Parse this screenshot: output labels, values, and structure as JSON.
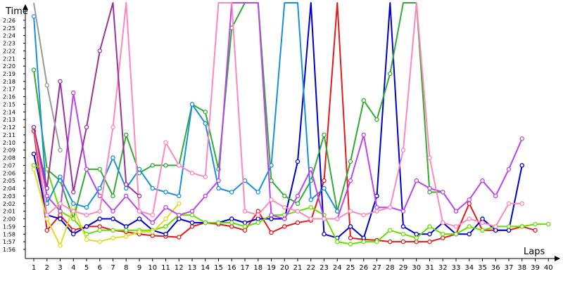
{
  "chart_data": {
    "type": "line",
    "ylabel": "Time",
    "xlabel": "Laps",
    "x": [
      1,
      2,
      3,
      4,
      5,
      6,
      7,
      8,
      9,
      10,
      11,
      12,
      13,
      14,
      15,
      16,
      17,
      18,
      19,
      20,
      21,
      22,
      23,
      24,
      25,
      26,
      27,
      28,
      29,
      30,
      31,
      32,
      33,
      34,
      35,
      36,
      37,
      38,
      39,
      40
    ],
    "xlim": [
      1,
      40
    ],
    "ylim": [
      "1:55",
      "2:28"
    ],
    "yticks": [
      "1:56",
      "1:57",
      "1:58",
      "1:59",
      "2:00",
      "2:01",
      "2:02",
      "2:03",
      "2:04",
      "2:05",
      "2:06",
      "2:07",
      "2:08",
      "2:09",
      "2:10",
      "2:11",
      "2:12",
      "2:13",
      "2:14",
      "2:15",
      "2:16",
      "2:17",
      "2:18",
      "2:19",
      "2:20",
      "2:21",
      "2:22",
      "2:23",
      "2:24",
      "2:25",
      "2:26"
    ],
    "grid": false,
    "legend": "none",
    "series": [
      {
        "color": "#e41a1c",
        "values": [
          "2:11.5",
          "1:58.5",
          "2:00.5",
          "1:58.5",
          "1:59.0",
          "1:59.0",
          "1:58.5",
          "1:58.3",
          "1:58.0",
          "1:57.8",
          "1:57.7",
          "1:57.6",
          "1:59.0",
          "1:59.5",
          "1:59.3",
          "1:59.0",
          "1:58.5",
          "2:01.0",
          "1:58.2",
          "1:59.0",
          "1:59.5",
          "1:59.8",
          "2:05.0",
          "2:30.0",
          "1:57.5",
          "1:57.3",
          "1:57.2",
          "1:57.0",
          "1:57.0",
          "1:57.0",
          "1:57.0",
          "1:57.5",
          "1:58.0",
          "2:02.0",
          "1:58.5",
          "1:58.5",
          "1:58.5",
          "1:59.0",
          "1:58.5",
          null
        ]
      },
      {
        "color": "#0000cc",
        "values": [
          "2:08.5",
          "2:00.5",
          "2:00.0",
          "1:58.0",
          "1:59.0",
          "2:00.0",
          "2:00.0",
          "1:59.0",
          "2:00.0",
          "1:58.5",
          "1:58.0",
          "2:00.0",
          "1:59.5",
          "1:59.5",
          "1:59.5",
          "2:00.0",
          "1:59.5",
          "2:00.0",
          "2:00.0",
          "2:00.0",
          "2:07.5",
          "2:30.0",
          "1:58.0",
          "1:57.5",
          "1:59.0",
          "1:57.5",
          "2:03.0",
          "2:30.0",
          "1:59.0",
          "1:58.0",
          "1:58.0",
          "1:59.5",
          "1:58.0",
          "1:58.0",
          "2:00.0",
          "1:58.5",
          "1:58.5",
          "2:07.0",
          null,
          null
        ]
      },
      {
        "color": "#33aa33",
        "values": [
          "2:19.5",
          "2:06.5",
          "2:05.0",
          "2:00.0",
          "2:06.5",
          "2:06.5",
          "2:03.0",
          "2:11.0",
          "2:06.0",
          "2:07.0",
          "2:07.0",
          "2:07.0",
          "2:15.0",
          "2:14.0",
          "2:06.5",
          "2:25.0",
          "2:30.0",
          "2:30.0",
          "2:05.0",
          "2:03.0",
          "2:02.0",
          "2:05.0",
          "2:11.0",
          "2:01.0",
          "2:07.5",
          "2:15.5",
          "2:13.0",
          "2:19.0",
          "2:30.0",
          "2:30.0",
          "2:03.5",
          "2:03.5",
          null,
          null,
          null,
          null,
          null,
          null,
          null,
          null
        ]
      },
      {
        "color": "#66dd00",
        "values": [
          "2:07.0",
          "2:06.5",
          "2:01.0",
          "2:00.0",
          "1:58.0",
          "1:58.5",
          "1:58.5",
          "1:58.5",
          "1:58.5",
          "1:58.5",
          "1:59.0",
          "2:00.5",
          "2:00.5",
          "1:59.5",
          "1:59.5",
          "1:59.5",
          "1:59.0",
          "1:59.5",
          "2:00.5",
          "2:00.5",
          "2:01.0",
          "2:01.5",
          "2:00.5",
          "1:57.0",
          "1:56.7",
          "1:57.0",
          "1:57.0",
          "1:58.5",
          "1:58.0",
          "1:57.5",
          "1:59.0",
          "1:58.0",
          "1:58.0",
          "1:59.0",
          "1:58.5",
          "1:59.0",
          "1:59.0",
          "1:59.0",
          "1:59.3",
          "1:59.3"
        ]
      },
      {
        "color": "#dddd22",
        "values": [
          "2:06.5",
          "2:00.0",
          "1:56.5",
          "2:01.5",
          "1:57.3",
          "1:57.0",
          "1:57.5",
          "1:57.7",
          "1:58.3",
          "1:58.3",
          "2:00.0",
          "2:02.0",
          null,
          null,
          null,
          null,
          null,
          null,
          null,
          null,
          null,
          null,
          null,
          null,
          null,
          null,
          null,
          null,
          null,
          null,
          null,
          null,
          null,
          null,
          null,
          null,
          null,
          null,
          null,
          null
        ]
      },
      {
        "color": "#1a8fe0",
        "values": [
          "2:26.5",
          "2:02.0",
          "2:05.5",
          "2:02.0",
          "2:01.5",
          "2:04.0",
          "2:08.0",
          "2:04.0",
          "2:06.5",
          "2:04.0",
          "2:03.5",
          "2:03.0",
          "2:15.0",
          "2:12.5",
          "2:04.0",
          "2:03.5",
          "2:05.0",
          "2:03.5",
          "2:07.0",
          "2:30.0",
          "2:30.0",
          "2:02.5",
          "2:04.0",
          "2:01.0",
          null,
          null,
          null,
          null,
          null,
          null,
          null,
          null,
          null,
          null,
          null,
          null,
          null,
          null,
          null,
          null
        ]
      },
      {
        "color": "#bb44ee",
        "values": [
          "2:12.0",
          "2:03.0",
          "2:01.0",
          "2:16.5",
          "2:06.5",
          "2:03.0",
          "2:01.0",
          "2:03.0",
          "2:01.0",
          "1:59.5",
          "2:01.5",
          "2:00.5",
          "2:01.0",
          "2:03.0",
          "2:05.0",
          "2:30.0",
          "2:30.0",
          "2:30.0",
          "2:00.5",
          "2:00.0",
          "2:03.0",
          "2:06.5",
          "2:00.0",
          "2:00.0",
          "2:05.0",
          "2:11.0",
          "2:01.5",
          "2:01.5",
          "2:01.0",
          "2:05.0",
          "2:04.0",
          "2:03.5",
          "2:01.0",
          "2:02.5",
          "2:05.0",
          "2:03.0",
          "2:06.5",
          "2:10.5",
          null,
          null
        ]
      },
      {
        "color": "#ff88bb",
        "values": [
          "2:12.0",
          "2:00.5",
          "2:02.0",
          "2:01.0",
          "2:00.5",
          "2:01.0",
          "2:12.0",
          "2:30.0",
          "2:01.0",
          "2:00.5",
          "2:10.0",
          "2:07.0",
          "2:06.0",
          "2:05.5",
          "2:30.0",
          "2:30.0",
          "2:01.0",
          "2:00.5",
          "2:02.5",
          "2:01.5",
          "2:01.0",
          "2:00.0",
          "2:00.0",
          "2:00.0",
          "2:01.0",
          "2:00.5",
          "2:01.0",
          "2:01.5",
          "2:09.0",
          "2:30.0",
          "2:08.0",
          "1:59.5",
          "1:59.0",
          "2:00.0",
          "1:59.5",
          "1:59.0",
          "2:02.0",
          "2:02.0",
          null,
          null
        ]
      },
      {
        "color": "#993399",
        "values": [
          "2:12.0",
          "2:04.0",
          "2:18.0",
          "2:03.5",
          "2:12.0",
          "2:22.0",
          "2:30.0",
          "2:04.5",
          "2:03.0",
          null,
          null,
          null,
          null,
          null,
          null,
          null,
          null,
          null,
          null,
          null,
          null,
          null,
          null,
          null,
          null,
          null,
          null,
          null,
          null,
          null,
          null,
          null,
          null,
          null,
          null,
          null,
          null,
          null,
          null,
          null
        ]
      },
      {
        "color": "#999999",
        "values": [
          "2:30.0",
          "2:17.5",
          "2:09.0",
          null,
          null,
          null,
          null,
          null,
          null,
          null,
          null,
          null,
          null,
          null,
          null,
          null,
          null,
          null,
          null,
          null,
          null,
          null,
          null,
          null,
          null,
          null,
          null,
          null,
          null,
          null,
          null,
          null,
          null,
          null,
          null,
          null,
          null,
          null,
          null,
          null
        ]
      }
    ]
  }
}
